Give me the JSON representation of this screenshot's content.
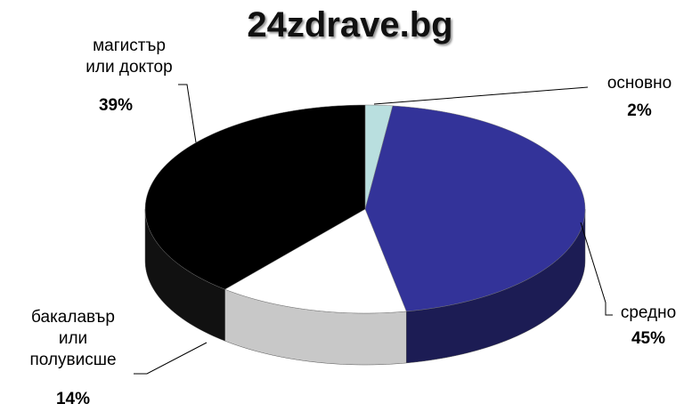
{
  "chart_data": {
    "type": "pie",
    "title": "24zdrave.bg",
    "categories": [
      "основно",
      "средно",
      "бакалавър\nили\nполувисше",
      "магистър\nили доктор"
    ],
    "values": [
      2,
      45,
      14,
      39
    ],
    "value_labels": [
      "2%",
      "45%",
      "14%",
      "39%"
    ],
    "colors": [
      "#b9dfdf",
      "#333399",
      "#ffffff",
      "#000000"
    ]
  }
}
